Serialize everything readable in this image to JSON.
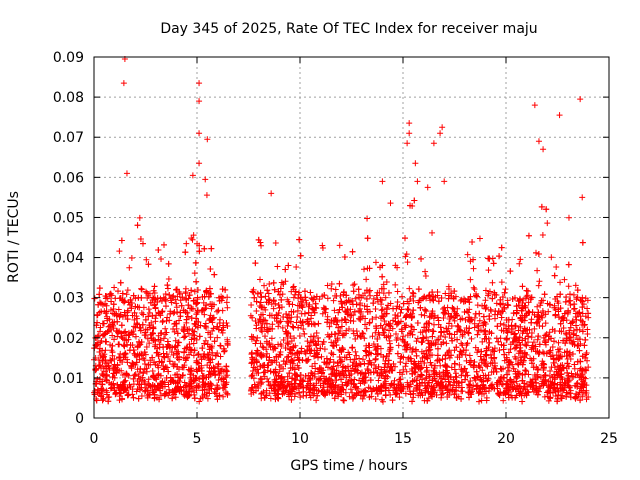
{
  "chart_data": {
    "type": "scatter",
    "title": "Day 345 of 2025, Rate Of TEC Index for receiver maju",
    "xlabel": "GPS time / hours",
    "ylabel": "ROTI / TECUs",
    "xlim": [
      0,
      25
    ],
    "ylim": [
      0,
      0.09
    ],
    "x_ticks": [
      0,
      5,
      10,
      15,
      20,
      25
    ],
    "x_tick_labels": [
      "0",
      "5",
      "10",
      "15",
      "20",
      "25"
    ],
    "y_ticks": [
      0,
      0.01,
      0.02,
      0.03,
      0.04,
      0.05,
      0.06,
      0.07,
      0.08,
      0.09
    ],
    "y_tick_labels": [
      "0",
      "0.01",
      "0.02",
      "0.03",
      "0.04",
      "0.05",
      "0.06",
      "0.07",
      "0.08",
      "0.09"
    ],
    "grid": true,
    "marker": "+",
    "marker_color": "#ff0000",
    "data_gap_hours": [
      6.5,
      7.6
    ],
    "series": [
      {
        "name": "ROTI",
        "sampling": "dense ~0.005-0.03 TECU band from 0 to 6.5 h and from 7.6 to 24 h",
        "notable_points": [
          {
            "x": 1.5,
            "y": 0.0895
          },
          {
            "x": 1.45,
            "y": 0.0835
          },
          {
            "x": 5.1,
            "y": 0.0835
          },
          {
            "x": 5.1,
            "y": 0.079
          },
          {
            "x": 5.1,
            "y": 0.071
          },
          {
            "x": 5.5,
            "y": 0.0695
          },
          {
            "x": 4.8,
            "y": 0.0605
          },
          {
            "x": 5.1,
            "y": 0.0635
          },
          {
            "x": 5.4,
            "y": 0.0595
          },
          {
            "x": 21.4,
            "y": 0.078
          },
          {
            "x": 22.6,
            "y": 0.0755
          },
          {
            "x": 23.6,
            "y": 0.0795
          },
          {
            "x": 15.3,
            "y": 0.0735
          },
          {
            "x": 15.3,
            "y": 0.071
          },
          {
            "x": 15.2,
            "y": 0.0685
          },
          {
            "x": 16.5,
            "y": 0.0685
          },
          {
            "x": 16.9,
            "y": 0.0725
          },
          {
            "x": 16.8,
            "y": 0.071
          },
          {
            "x": 15.6,
            "y": 0.0635
          },
          {
            "x": 21.6,
            "y": 0.069
          },
          {
            "x": 21.8,
            "y": 0.067
          },
          {
            "x": 1.6,
            "y": 0.061
          },
          {
            "x": 8.6,
            "y": 0.056
          },
          {
            "x": 23.7,
            "y": 0.055
          },
          {
            "x": 14.0,
            "y": 0.059
          },
          {
            "x": 15.7,
            "y": 0.059
          },
          {
            "x": 16.2,
            "y": 0.0575
          },
          {
            "x": 17.0,
            "y": 0.059
          }
        ]
      }
    ]
  }
}
